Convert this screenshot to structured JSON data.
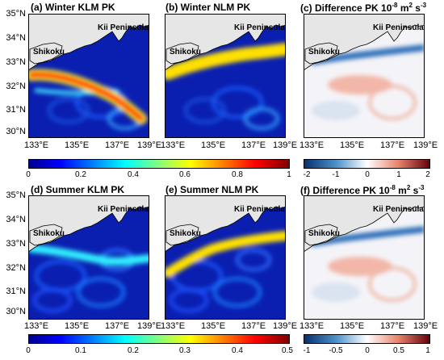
{
  "panels": [
    {
      "id": "a",
      "title": "(a) Winter KLM PK",
      "type": "winter-klm"
    },
    {
      "id": "b",
      "title": "(b) Winter NLM PK",
      "type": "winter-nlm"
    },
    {
      "id": "c",
      "title": "(c) Difference PK 10⁻⁸ m² s⁻³",
      "type": "diff"
    },
    {
      "id": "d",
      "title": "(d) Summer KLM PK",
      "type": "summer-klm"
    },
    {
      "id": "e",
      "title": "(e) Summer NLM PK",
      "type": "summer-nlm"
    },
    {
      "id": "f",
      "title": "(f) Difference PK 10⁻⁸ m² s⁻³",
      "type": "diff"
    }
  ],
  "labels": {
    "kii": "Kii Peninsula",
    "shikoku": "Shikoku"
  },
  "lat_ticks": [
    "35°N",
    "34°N",
    "33°N",
    "32°N",
    "31°N",
    "30°N"
  ],
  "lon_ticks": [
    "133°E",
    "135°E",
    "137°E",
    "139°E"
  ],
  "colorbars": {
    "winter_pk": {
      "ticks": [
        "0",
        "0.2",
        "0.4",
        "0.6",
        "0.8",
        "1"
      ]
    },
    "winter_diff": {
      "ticks": [
        "-2",
        "-1",
        "0",
        "1",
        "2"
      ]
    },
    "summer_pk": {
      "ticks": [
        "0",
        "0.1",
        "0.2",
        "0.3",
        "0.4",
        "0.5"
      ]
    },
    "summer_diff": {
      "ticks": [
        "-1",
        "-0.5",
        "0",
        "0.5",
        "1"
      ]
    }
  },
  "colors": {
    "jet": [
      "#00008f",
      "#0000ff",
      "#00ffff",
      "#ffff00",
      "#ff0000",
      "#800000"
    ],
    "diverging": [
      "#08306b",
      "#4a90c8",
      "#ffffff",
      "#e8846a",
      "#67000d"
    ],
    "land": "#e6e6e6"
  }
}
